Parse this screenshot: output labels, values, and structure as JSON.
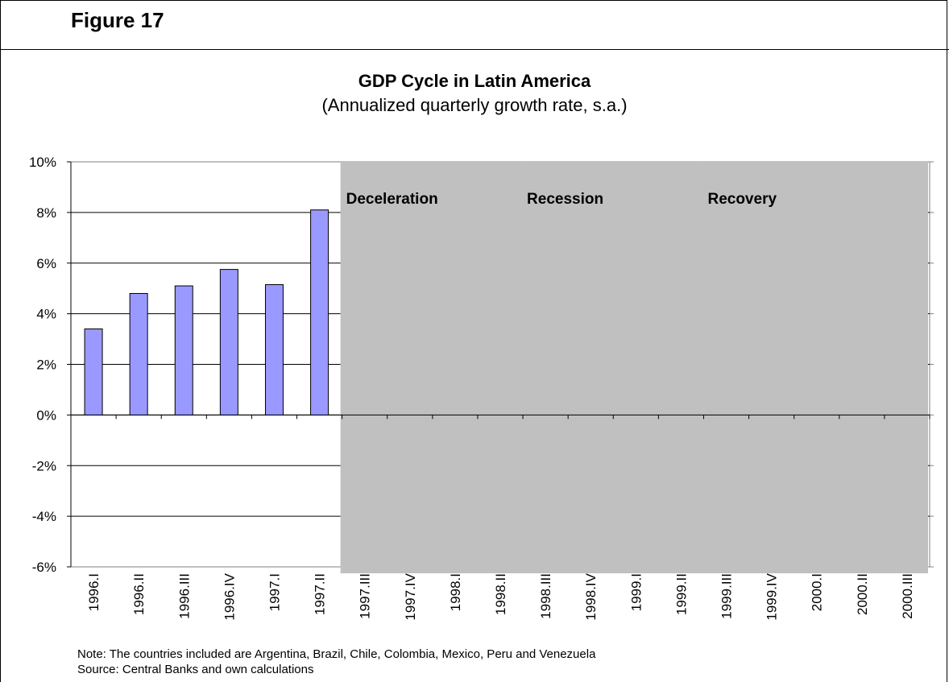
{
  "figure_label": "Figure 17",
  "chart_data": {
    "type": "bar",
    "title": "GDP Cycle in Latin America",
    "subtitle": "(Annualized quarterly growth rate, s.a.)",
    "categories": [
      "1996.I",
      "1996.II",
      "1996.III",
      "1996.IV",
      "1997.I",
      "1997.II",
      "1997.III",
      "1997.IV",
      "1998.I",
      "1998.II",
      "1998.III",
      "1998.IV",
      "1999.I",
      "1999.II",
      "1999.III",
      "1999.IV",
      "2000.I",
      "2000.II",
      "2000.III"
    ],
    "values": [
      3.4,
      4.8,
      5.1,
      5.75,
      5.15,
      8.1,
      null,
      null,
      null,
      null,
      null,
      null,
      null,
      null,
      null,
      null,
      null,
      null,
      null
    ],
    "ylim": [
      -6,
      10
    ],
    "yticks": [
      -6,
      -4,
      -2,
      0,
      2,
      4,
      6,
      8,
      10
    ],
    "ytick_labels": [
      "-6%",
      "-4%",
      "-2%",
      "0%",
      "2%",
      "4%",
      "6%",
      "8%",
      "10%"
    ],
    "bar_color": "#9999ff",
    "phases": [
      {
        "label": "Deceleration",
        "start": "1997.III",
        "end": "1998.II",
        "color": "#c0c0c0"
      },
      {
        "label": "Recession",
        "start": "1998.III",
        "end": "1999.II",
        "color": "#c0c0c0"
      },
      {
        "label": "Recovery",
        "start": "1999.III",
        "end": "2000.III",
        "color": "#c0c0c0"
      }
    ],
    "grid": true
  },
  "notes": {
    "note": "Note: The countries included are Argentina, Brazil, Chile, Colombia, Mexico, Peru and Venezuela",
    "source": "Source: Central Banks and own calculations"
  }
}
